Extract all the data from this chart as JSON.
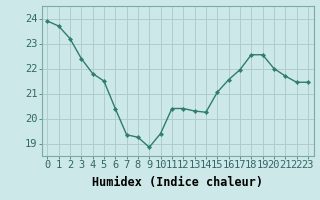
{
  "x": [
    0,
    1,
    2,
    3,
    4,
    5,
    6,
    7,
    8,
    9,
    10,
    11,
    12,
    13,
    14,
    15,
    16,
    17,
    18,
    19,
    20,
    21,
    22,
    23
  ],
  "y": [
    23.9,
    23.7,
    23.2,
    22.4,
    21.8,
    21.5,
    20.4,
    19.35,
    19.25,
    18.85,
    19.4,
    20.4,
    20.4,
    20.3,
    20.25,
    21.05,
    21.55,
    21.95,
    22.55,
    22.55,
    22.0,
    21.7,
    21.45,
    21.45
  ],
  "line_color": "#2e7d6e",
  "marker": "D",
  "marker_size": 2.2,
  "bg_color": "#cce8e8",
  "grid_color": "#b0cccc",
  "xlabel": "Humidex (Indice chaleur)",
  "xlim": [
    -0.5,
    23.5
  ],
  "ylim": [
    18.5,
    24.5
  ],
  "yticks": [
    19,
    20,
    21,
    22,
    23,
    24
  ],
  "xticks": [
    0,
    1,
    2,
    3,
    4,
    5,
    6,
    7,
    8,
    9,
    10,
    11,
    12,
    13,
    14,
    15,
    16,
    17,
    18,
    19,
    20,
    21,
    22,
    23
  ],
  "xtick_labels": [
    "0",
    "1",
    "2",
    "3",
    "4",
    "5",
    "6",
    "7",
    "8",
    "9",
    "10",
    "11",
    "12",
    "13",
    "14",
    "15",
    "16",
    "17",
    "18",
    "19",
    "20",
    "21",
    "22",
    "23"
  ],
  "line_width": 1.0,
  "spine_color": "#7aaaaa",
  "tick_color": "#336666",
  "label_color": "#000000",
  "font_size": 7.5,
  "xlabel_fontsize": 8.5
}
